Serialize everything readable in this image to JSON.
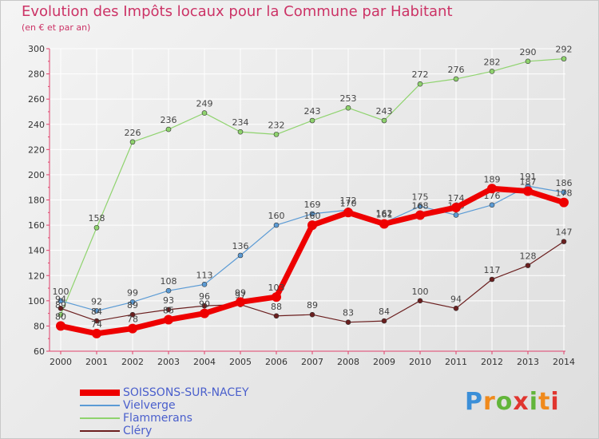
{
  "title": "Evolution des Impôts locaux pour la Commune par Habitant",
  "subtitle": "(en € et par an)",
  "logo": {
    "text": "Proxiti",
    "colors": [
      "#3b8fd8",
      "#f08a1c",
      "#62b53a",
      "#e0352f"
    ]
  },
  "chart_data": {
    "type": "line",
    "title": "Evolution des Impôts locaux pour la Commune par Habitant",
    "subtitle": "(en € et par an)",
    "x": [
      "2000",
      "2001",
      "2002",
      "2003",
      "2004",
      "2005",
      "2006",
      "2007",
      "2008",
      "2009",
      "2010",
      "2011",
      "2012",
      "2013",
      "2014"
    ],
    "ylim": [
      60,
      300
    ],
    "yticks": [
      60,
      80,
      100,
      120,
      140,
      160,
      180,
      200,
      220,
      240,
      260,
      280,
      300
    ],
    "grid": true,
    "legend_position": "bottom-left",
    "series": [
      {
        "name": "Flammerans",
        "color": "#8fd36e",
        "width": 1.2,
        "values": [
          89,
          158,
          226,
          236,
          249,
          234,
          232,
          243,
          253,
          243,
          272,
          276,
          282,
          290,
          292
        ]
      },
      {
        "name": "Vielverge",
        "color": "#5b9bd5",
        "width": 1.2,
        "values": [
          100,
          92,
          99,
          108,
          113,
          136,
          160,
          169,
          172,
          162,
          175,
          168,
          176,
          191,
          186
        ]
      },
      {
        "name": "Cléry",
        "color": "#6b1f1f",
        "width": 1.2,
        "values": [
          94,
          84,
          89,
          93,
          96,
          97,
          88,
          89,
          83,
          84,
          100,
          94,
          117,
          128,
          147
        ]
      },
      {
        "name": "SOISSONS-SUR-NACEY",
        "color": "#ee0000",
        "width": 7,
        "values": [
          80,
          74,
          78,
          85,
          90,
          99,
          103,
          160,
          170,
          161,
          168,
          174,
          189,
          187,
          178
        ]
      }
    ],
    "legend_order": [
      "SOISSONS-SUR-NACEY",
      "Vielverge",
      "Flammerans",
      "Cléry"
    ]
  }
}
